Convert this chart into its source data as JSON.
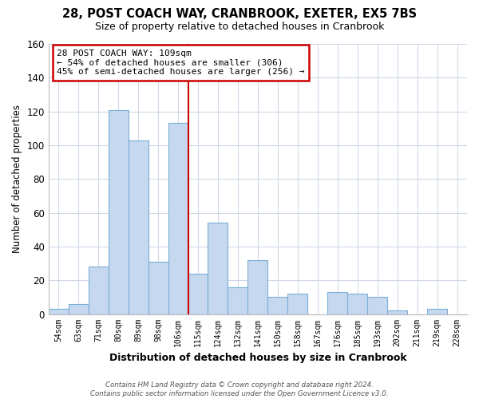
{
  "title": "28, POST COACH WAY, CRANBROOK, EXETER, EX5 7BS",
  "subtitle": "Size of property relative to detached houses in Cranbrook",
  "xlabel": "Distribution of detached houses by size in Cranbrook",
  "ylabel": "Number of detached properties",
  "bin_labels": [
    "54sqm",
    "63sqm",
    "71sqm",
    "80sqm",
    "89sqm",
    "98sqm",
    "106sqm",
    "115sqm",
    "124sqm",
    "132sqm",
    "141sqm",
    "150sqm",
    "158sqm",
    "167sqm",
    "176sqm",
    "185sqm",
    "193sqm",
    "202sqm",
    "211sqm",
    "219sqm",
    "228sqm"
  ],
  "bar_heights": [
    3,
    6,
    28,
    121,
    103,
    31,
    113,
    24,
    54,
    16,
    32,
    10,
    12,
    0,
    13,
    12,
    10,
    2,
    0,
    3,
    0
  ],
  "bar_color": "#c5d8f0",
  "bar_edge_color": "#7aafd4",
  "vline_index": 7,
  "vline_color": "#cc0000",
  "ylim": [
    0,
    160
  ],
  "yticks": [
    0,
    20,
    40,
    60,
    80,
    100,
    120,
    140,
    160
  ],
  "annotation_title": "28 POST COACH WAY: 109sqm",
  "annotation_line1": "← 54% of detached houses are smaller (306)",
  "annotation_line2": "45% of semi-detached houses are larger (256) →",
  "footer1": "Contains HM Land Registry data © Crown copyright and database right 2024.",
  "footer2": "Contains public sector information licensed under the Open Government Licence v3.0.",
  "background_color": "#ffffff",
  "grid_color": "#d0d8e8"
}
